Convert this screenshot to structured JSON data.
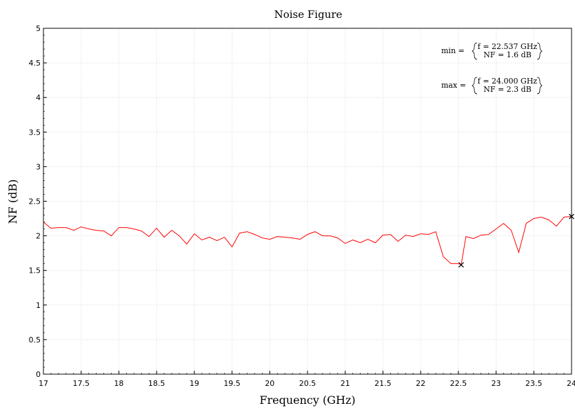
{
  "chart_data": {
    "type": "line",
    "title": "Noise Figure",
    "xlabel": "Frequency (GHz)",
    "ylabel": "NF (dB)",
    "xlim": [
      17,
      24
    ],
    "ylim": [
      0,
      5
    ],
    "grid": true,
    "x_ticks": [
      "17",
      "17.5",
      "18",
      "18.5",
      "19",
      "19.5",
      "20",
      "20.5",
      "21",
      "21.5",
      "22",
      "22.5",
      "23",
      "23.5",
      "24"
    ],
    "y_ticks": [
      "0",
      "0.5",
      "1",
      "1.5",
      "2",
      "2.5",
      "3",
      "3.5",
      "4",
      "4.5",
      "5"
    ],
    "colors": {
      "series": "#ff0000",
      "marker": "#000000",
      "axis": "#000000"
    },
    "series": [
      {
        "x": [
          17.0,
          17.1,
          17.2,
          17.3,
          17.4,
          17.5,
          17.6,
          17.7,
          17.8,
          17.9,
          18.0,
          18.1,
          18.2,
          18.3,
          18.4,
          18.5,
          18.6,
          18.7,
          18.8,
          18.9,
          19.0,
          19.1,
          19.2,
          19.3,
          19.4,
          19.5,
          19.6,
          19.7,
          19.8,
          19.9,
          20.0,
          20.1,
          20.2,
          20.3,
          20.4,
          20.5,
          20.6,
          20.7,
          20.8,
          20.9,
          21.0,
          21.1,
          21.2,
          21.3,
          21.4,
          21.5,
          21.6,
          21.7,
          21.8,
          21.9,
          22.0,
          22.1,
          22.2,
          22.3,
          22.4,
          22.5,
          22.537,
          22.6,
          22.7,
          22.8,
          22.9,
          23.0,
          23.1,
          23.2,
          23.3,
          23.4,
          23.5,
          23.6,
          23.7,
          23.8,
          23.9,
          24.0
        ],
        "y": [
          2.2,
          2.11,
          2.12,
          2.12,
          2.08,
          2.13,
          2.1,
          2.08,
          2.07,
          2.0,
          2.12,
          2.12,
          2.1,
          2.07,
          1.99,
          2.11,
          1.98,
          2.08,
          2.0,
          1.88,
          2.03,
          1.94,
          1.98,
          1.93,
          1.98,
          1.84,
          2.04,
          2.06,
          2.02,
          1.97,
          1.95,
          1.99,
          1.98,
          1.97,
          1.95,
          2.02,
          2.06,
          2.0,
          2.0,
          1.97,
          1.89,
          1.94,
          1.9,
          1.95,
          1.9,
          2.01,
          2.02,
          1.92,
          2.01,
          1.99,
          2.03,
          2.02,
          2.06,
          1.7,
          1.6,
          1.6,
          1.58,
          1.99,
          1.96,
          2.01,
          2.02,
          2.1,
          2.18,
          2.08,
          1.76,
          2.18,
          2.25,
          2.27,
          2.23,
          2.14,
          2.27,
          2.28
        ]
      }
    ],
    "annotations": [
      {
        "prefix": "min =",
        "line1": "f = 22.537 GHz",
        "line2": "NF = 1.6 dB",
        "x": 22.537,
        "y": 1.58
      },
      {
        "prefix": "max =",
        "line1": "f = 24.000 GHz",
        "line2": "NF = 2.3 dB",
        "x": 24.0,
        "y": 2.28
      }
    ]
  }
}
